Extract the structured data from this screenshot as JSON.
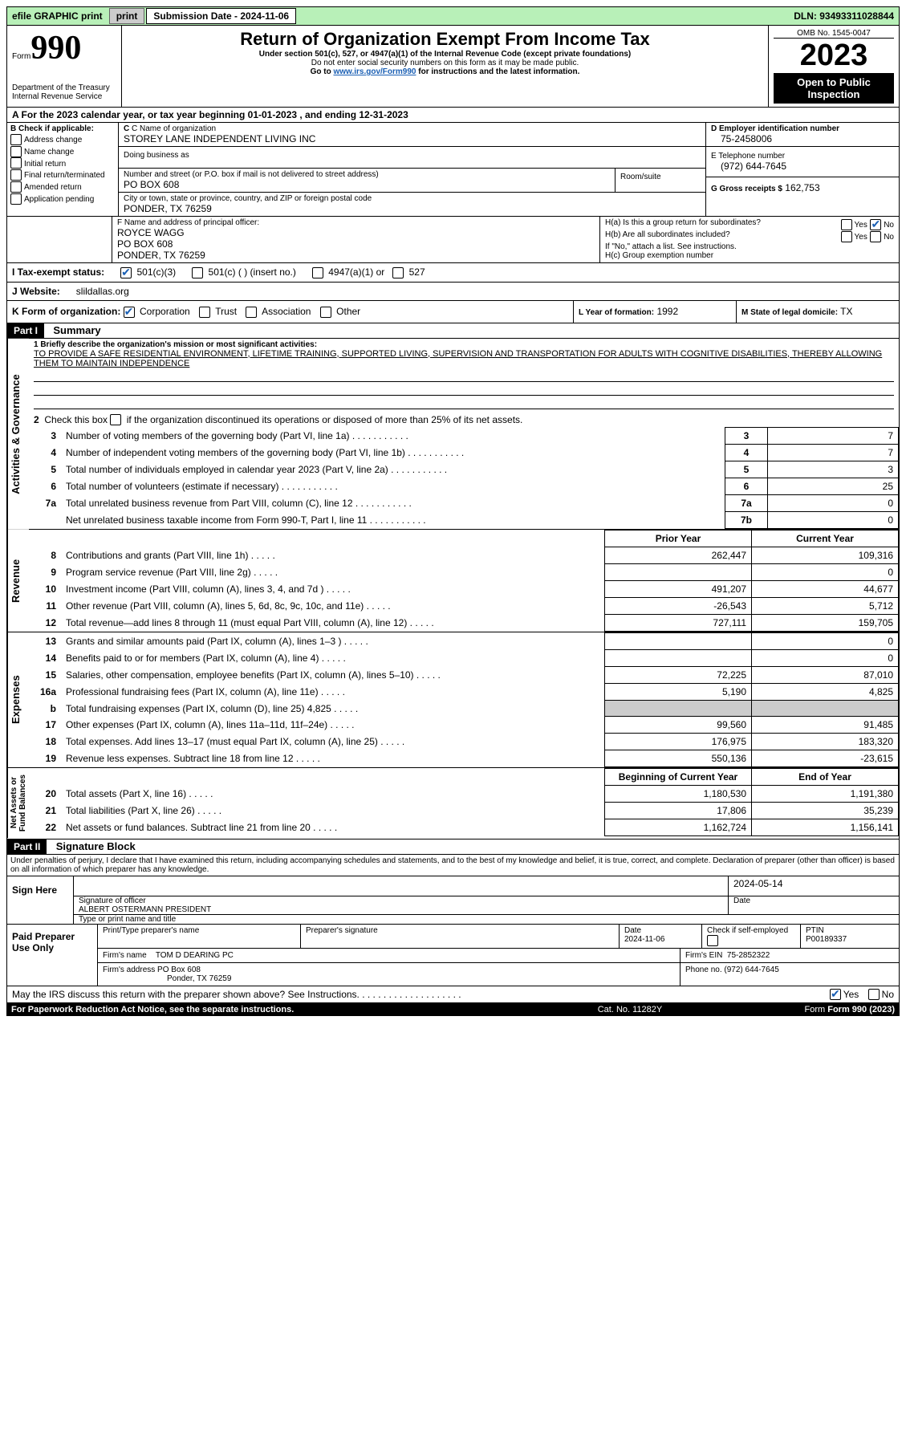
{
  "topbar": {
    "efile": "efile GRAPHIC print",
    "submission": "Submission Date - 2024-11-06",
    "dln": "DLN: 93493311028844"
  },
  "header": {
    "form_label": "Form",
    "form_num": "990",
    "dept": "Department of the Treasury\nInternal Revenue Service",
    "title": "Return of Organization Exempt From Income Tax",
    "subtitle1": "Under section 501(c), 527, or 4947(a)(1) of the Internal Revenue Code (except private foundations)",
    "subtitle2": "Do not enter social security numbers on this form as it may be made public.",
    "subtitle3_pre": "Go to ",
    "subtitle3_link": "www.irs.gov/Form990",
    "subtitle3_post": " for instructions and the latest information.",
    "omb": "OMB No. 1545-0047",
    "year": "2023",
    "open": "Open to Public Inspection"
  },
  "lineA": "A For the 2023 calendar year, or tax year beginning 01-01-2023     , and ending 12-31-2023",
  "boxB": {
    "label": "B Check if applicable:",
    "items": [
      "Address change",
      "Name change",
      "Initial return",
      "Final return/terminated",
      "Amended return",
      "Application pending"
    ]
  },
  "boxC": {
    "name_label": "C Name of organization",
    "name": "STOREY LANE INDEPENDENT LIVING INC",
    "dba_label": "Doing business as",
    "street_label": "Number and street (or P.O. box if mail is not delivered to street address)",
    "street": "PO BOX 608",
    "room_label": "Room/suite",
    "city_label": "City or town, state or province, country, and ZIP or foreign postal code",
    "city": "PONDER, TX  76259"
  },
  "boxD": {
    "label": "D Employer identification number",
    "value": "75-2458006"
  },
  "boxE": {
    "label": "E Telephone number",
    "value": "(972) 644-7645"
  },
  "boxG": {
    "label": "G Gross receipts $",
    "value": "162,753"
  },
  "boxF": {
    "label": "F  Name and address of principal officer:",
    "lines": [
      "ROYCE WAGG",
      "PO BOX 608",
      "PONDER, TX  76259"
    ]
  },
  "boxH": {
    "ha": "H(a)  Is this a group return for subordinates?",
    "hb": "H(b)  Are all subordinates included?",
    "hb_note": "If \"No,\" attach a list. See instructions.",
    "hc": "H(c)  Group exemption number",
    "yes": "Yes",
    "no": "No"
  },
  "lineI": {
    "label": "I    Tax-exempt status:",
    "opts": [
      "501(c)(3)",
      "501(c) (   ) (insert no.)",
      "4947(a)(1) or",
      "527"
    ]
  },
  "lineJ": {
    "label": "J    Website:",
    "value": "slildallas.org"
  },
  "lineK": {
    "label": "K Form of organization:",
    "opts": [
      "Corporation",
      "Trust",
      "Association",
      "Other"
    ]
  },
  "lineL": {
    "label": "L Year of formation:",
    "value": "1992"
  },
  "lineM": {
    "label": "M State of legal domicile:",
    "value": "TX"
  },
  "partI": {
    "bar": "Part I",
    "title": "Summary"
  },
  "summary": {
    "q1_label": "1   Briefly describe the organization's mission or most significant activities:",
    "q1_text": "TO PROVIDE A SAFE RESIDENTIAL ENVIRONMENT, LIFETIME TRAINING, SUPPORTED LIVING, SUPERVISION AND TRANSPORTATION FOR ADULTS WITH COGNITIVE DISABILITIES, THEREBY ALLOWING THEM TO MAINTAIN INDEPENDENCE",
    "q2": "2   Check this box      if the organization discontinued its operations or disposed of more than 25% of its net assets.",
    "rows": [
      {
        "n": "3",
        "d": "Number of voting members of the governing body (Part VI, line 1a)",
        "k": "3",
        "v": "7"
      },
      {
        "n": "4",
        "d": "Number of independent voting members of the governing body (Part VI, line 1b)",
        "k": "4",
        "v": "7"
      },
      {
        "n": "5",
        "d": "Total number of individuals employed in calendar year 2023 (Part V, line 2a)",
        "k": "5",
        "v": "3"
      },
      {
        "n": "6",
        "d": "Total number of volunteers (estimate if necessary)",
        "k": "6",
        "v": "25"
      },
      {
        "n": "7a",
        "d": "Total unrelated business revenue from Part VIII, column (C), line 12",
        "k": "7a",
        "v": "0"
      },
      {
        "n": "",
        "d": "Net unrelated business taxable income from Form 990-T, Part I, line 11",
        "k": "7b",
        "v": "0"
      }
    ],
    "yearhead": {
      "prior": "Prior Year",
      "current": "Current Year",
      "boy": "Beginning of Current Year",
      "eoy": "End of Year"
    },
    "revenue": [
      {
        "n": "8",
        "d": "Contributions and grants (Part VIII, line 1h)",
        "p": "262,447",
        "c": "109,316"
      },
      {
        "n": "9",
        "d": "Program service revenue (Part VIII, line 2g)",
        "p": "",
        "c": "0"
      },
      {
        "n": "10",
        "d": "Investment income (Part VIII, column (A), lines 3, 4, and 7d )",
        "p": "491,207",
        "c": "44,677"
      },
      {
        "n": "11",
        "d": "Other revenue (Part VIII, column (A), lines 5, 6d, 8c, 9c, 10c, and 11e)",
        "p": "-26,543",
        "c": "5,712"
      },
      {
        "n": "12",
        "d": "Total revenue—add lines 8 through 11 (must equal Part VIII, column (A), line 12)",
        "p": "727,111",
        "c": "159,705"
      }
    ],
    "expenses": [
      {
        "n": "13",
        "d": "Grants and similar amounts paid (Part IX, column (A), lines 1–3 )",
        "p": "",
        "c": "0"
      },
      {
        "n": "14",
        "d": "Benefits paid to or for members (Part IX, column (A), line 4)",
        "p": "",
        "c": "0"
      },
      {
        "n": "15",
        "d": "Salaries, other compensation, employee benefits (Part IX, column (A), lines 5–10)",
        "p": "72,225",
        "c": "87,010"
      },
      {
        "n": "16a",
        "d": "Professional fundraising fees (Part IX, column (A), line 11e)",
        "p": "5,190",
        "c": "4,825"
      },
      {
        "n": "b",
        "d": "Total fundraising expenses (Part IX, column (D), line 25) 4,825",
        "p": "shade",
        "c": "shade"
      },
      {
        "n": "17",
        "d": "Other expenses (Part IX, column (A), lines 11a–11d, 11f–24e)",
        "p": "99,560",
        "c": "91,485"
      },
      {
        "n": "18",
        "d": "Total expenses. Add lines 13–17 (must equal Part IX, column (A), line 25)",
        "p": "176,975",
        "c": "183,320"
      },
      {
        "n": "19",
        "d": "Revenue less expenses. Subtract line 18 from line 12",
        "p": "550,136",
        "c": "-23,615"
      }
    ],
    "netassets": [
      {
        "n": "20",
        "d": "Total assets (Part X, line 16)",
        "p": "1,180,530",
        "c": "1,191,380"
      },
      {
        "n": "21",
        "d": "Total liabilities (Part X, line 26)",
        "p": "17,806",
        "c": "35,239"
      },
      {
        "n": "22",
        "d": "Net assets or fund balances. Subtract line 21 from line 20",
        "p": "1,162,724",
        "c": "1,156,141"
      }
    ],
    "sidebars": {
      "ag": "Activities & Governance",
      "rev": "Revenue",
      "exp": "Expenses",
      "na": "Net Assets or\nFund Balances"
    }
  },
  "partII": {
    "bar": "Part II",
    "title": "Signature Block",
    "perjury": "Under penalties of perjury, I declare that I have examined this return, including accompanying schedules and statements, and to the best of my knowledge and belief, it is true, correct, and complete. Declaration of preparer (other than officer) is based on all information of which preparer has any knowledge."
  },
  "sign": {
    "here": "Sign Here",
    "sig_label": "Signature of officer",
    "date_label": "Date",
    "date": "2024-05-14",
    "name": "ALBERT OSTERMANN  PRESIDENT",
    "type_label": "Type or print name and title"
  },
  "paid": {
    "label": "Paid Preparer Use Only",
    "cols": {
      "name": "Print/Type preparer's name",
      "sig": "Preparer's signature",
      "date": "Date",
      "dateval": "2024-11-06",
      "check": "Check        if self-employed",
      "ptin": "PTIN",
      "ptinval": "P00189337"
    },
    "firm_name_label": "Firm's name",
    "firm_name": "TOM D DEARING PC",
    "firm_ein_label": "Firm's EIN",
    "firm_ein": "75-2852322",
    "firm_addr_label": "Firm's address",
    "firm_addr": "PO Box 608",
    "firm_addr2": "Ponder, TX  76259",
    "phone_label": "Phone no.",
    "phone": "(972) 644-7645"
  },
  "bottom": {
    "discuss": "May the IRS discuss this return with the preparer shown above? See Instructions.",
    "yes": "Yes",
    "no": "No",
    "paperwork": "For Paperwork Reduction Act Notice, see the separate instructions.",
    "cat": "Cat. No. 11282Y",
    "form": "Form 990 (2023)"
  }
}
